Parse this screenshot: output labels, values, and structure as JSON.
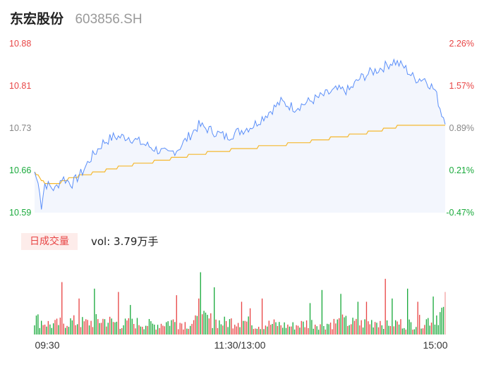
{
  "header": {
    "name": "东宏股份",
    "code": "603856.SH"
  },
  "colors": {
    "up": "#e84545",
    "down": "#1aaa3c",
    "price_line": "#5b8ff9",
    "avg_line": "#f5b82e",
    "axis_text": "#888888"
  },
  "volume_panel": {
    "tag": "日成交量",
    "vol_label": "vol: 3.79万手"
  },
  "chart_data": [
    {
      "type": "line",
      "y_ticks_left": [
        "10.88",
        "10.81",
        "10.73",
        "10.66",
        "10.59"
      ],
      "y_ticks_right": [
        "2.26%",
        "1.57%",
        "0.89%",
        "0.21%",
        "-0.47%"
      ],
      "ylim": [
        10.59,
        10.88
      ],
      "x_ticks": [
        "09:30",
        "11:30/13:00",
        "15:00"
      ],
      "points_count": 241,
      "price_keypoints": [
        [
          0,
          10.66
        ],
        [
          3,
          10.63
        ],
        [
          4,
          10.6
        ],
        [
          6,
          10.64
        ],
        [
          12,
          10.63
        ],
        [
          16,
          10.65
        ],
        [
          22,
          10.64
        ],
        [
          28,
          10.66
        ],
        [
          32,
          10.68
        ],
        [
          40,
          10.71
        ],
        [
          46,
          10.72
        ],
        [
          55,
          10.72
        ],
        [
          62,
          10.71
        ],
        [
          70,
          10.7
        ],
        [
          78,
          10.69
        ],
        [
          84,
          10.7
        ],
        [
          90,
          10.72
        ],
        [
          96,
          10.74
        ],
        [
          104,
          10.73
        ],
        [
          112,
          10.72
        ],
        [
          120,
          10.73
        ],
        [
          128,
          10.74
        ],
        [
          136,
          10.76
        ],
        [
          144,
          10.78
        ],
        [
          152,
          10.77
        ],
        [
          160,
          10.78
        ],
        [
          168,
          10.79
        ],
        [
          176,
          10.8
        ],
        [
          184,
          10.8
        ],
        [
          190,
          10.82
        ],
        [
          196,
          10.83
        ],
        [
          204,
          10.84
        ],
        [
          210,
          10.85
        ],
        [
          216,
          10.84
        ],
        [
          222,
          10.82
        ],
        [
          228,
          10.82
        ],
        [
          234,
          10.8
        ],
        [
          238,
          10.76
        ],
        [
          240,
          10.75
        ]
      ],
      "avg_keypoints": [
        [
          0,
          10.66
        ],
        [
          6,
          10.64
        ],
        [
          14,
          10.64
        ],
        [
          22,
          10.65
        ],
        [
          38,
          10.66
        ],
        [
          52,
          10.67
        ],
        [
          75,
          10.68
        ],
        [
          94,
          10.69
        ],
        [
          122,
          10.7
        ],
        [
          156,
          10.71
        ],
        [
          178,
          10.72
        ],
        [
          200,
          10.73
        ],
        [
          215,
          10.74
        ],
        [
          240,
          10.74
        ]
      ],
      "series": [
        {
          "name": "",
          "color": "#5b8ff9"
        },
        {
          "name": "",
          "color": "#f5b82e"
        }
      ]
    },
    {
      "type": "bar",
      "bars_count": 241,
      "volume_keypoints": [
        [
          0,
          0.3
        ],
        [
          10,
          0.18
        ],
        [
          20,
          0.25
        ],
        [
          30,
          0.22
        ],
        [
          40,
          0.28
        ],
        [
          50,
          0.2
        ],
        [
          60,
          0.22
        ],
        [
          70,
          0.18
        ],
        [
          80,
          0.25
        ],
        [
          90,
          0.2
        ],
        [
          100,
          0.3
        ],
        [
          110,
          0.22
        ],
        [
          120,
          0.28
        ],
        [
          130,
          0.18
        ],
        [
          140,
          0.2
        ],
        [
          150,
          0.16
        ],
        [
          160,
          0.22
        ],
        [
          170,
          0.2
        ],
        [
          180,
          0.25
        ],
        [
          190,
          0.2
        ],
        [
          200,
          0.26
        ],
        [
          210,
          0.22
        ],
        [
          220,
          0.2
        ],
        [
          230,
          0.28
        ],
        [
          240,
          0.45
        ]
      ],
      "spikes": [
        [
          16,
          0.8
        ],
        [
          26,
          0.55
        ],
        [
          35,
          0.7
        ],
        [
          49,
          0.65
        ],
        [
          56,
          0.45
        ],
        [
          83,
          0.6
        ],
        [
          96,
          0.55
        ],
        [
          97,
          0.95
        ],
        [
          105,
          0.72
        ],
        [
          121,
          0.5
        ],
        [
          126,
          0.4
        ],
        [
          133,
          0.55
        ],
        [
          161,
          0.48
        ],
        [
          168,
          0.68
        ],
        [
          179,
          0.62
        ],
        [
          189,
          0.5
        ],
        [
          194,
          0.5
        ],
        [
          205,
          0.85
        ],
        [
          209,
          0.55
        ],
        [
          218,
          0.7
        ],
        [
          224,
          0.5
        ],
        [
          233,
          0.58
        ],
        [
          240,
          0.65
        ]
      ],
      "pattern": "mixed red and green volume bars, mostly low with scattered spikes"
    }
  ]
}
